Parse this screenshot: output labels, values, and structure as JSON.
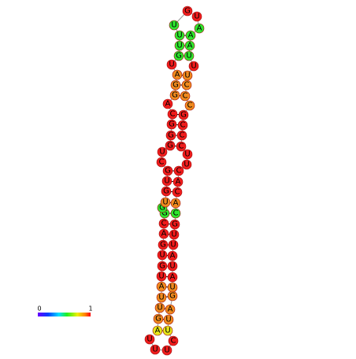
{
  "nodes": [
    {
      "label": "A",
      "color": "#e6e619"
    },
    {
      "label": "G",
      "color": "#f08a1e"
    },
    {
      "label": "U",
      "color": "#f08a1e"
    },
    {
      "label": "U",
      "color": "#f08a1e"
    },
    {
      "label": "A",
      "color": "#f08a1e"
    },
    {
      "label": "U",
      "color": "#f01c1c"
    },
    {
      "label": "G",
      "color": "#f01c1c"
    },
    {
      "label": "U",
      "color": "#f01c1c"
    },
    {
      "label": "G",
      "color": "#f01c1c"
    },
    {
      "label": "A",
      "color": "#f01c1c"
    },
    {
      "label": "C",
      "color": "#f01c1c"
    },
    {
      "label": "G",
      "color": "#2ee62e"
    },
    {
      "label": "G",
      "color": "#2ee62e"
    },
    {
      "label": "U",
      "color": "#f08a1e"
    },
    {
      "label": "G",
      "color": "#f01c1c"
    },
    {
      "label": "U",
      "color": "#f01c1c"
    },
    {
      "label": "G",
      "color": "#f01c1c"
    },
    {
      "label": "C",
      "color": "#f01c1c"
    },
    {
      "label": "U",
      "color": "#f01c1c"
    },
    {
      "label": "G",
      "color": "#f01c1c"
    },
    {
      "label": "G",
      "color": "#f01c1c"
    },
    {
      "label": "G",
      "color": "#f01c1c"
    },
    {
      "label": "C",
      "color": "#f01c1c"
    },
    {
      "label": "A",
      "color": "#f01c1c"
    },
    {
      "label": "G",
      "color": "#f08a1e"
    },
    {
      "label": "G",
      "color": "#f08a1e"
    },
    {
      "label": "A",
      "color": "#f08a1e"
    },
    {
      "label": "U",
      "color": "#f01c1c"
    },
    {
      "label": "G",
      "color": "#2ee62e"
    },
    {
      "label": "U",
      "color": "#2ee62e"
    },
    {
      "label": "U",
      "color": "#2ee62e"
    },
    {
      "label": "U",
      "color": "#2ee62e"
    },
    {
      "label": "G",
      "color": "#f01c1c"
    },
    {
      "label": "U",
      "color": "#f01c1c"
    },
    {
      "label": "A",
      "color": "#2ee62e"
    },
    {
      "label": "A",
      "color": "#2ee62e"
    },
    {
      "label": "A",
      "color": "#2ee62e"
    },
    {
      "label": "U",
      "color": "#2ee62e"
    },
    {
      "label": "U",
      "color": "#f01c1c"
    },
    {
      "label": "U",
      "color": "#f08a1e"
    },
    {
      "label": "C",
      "color": "#f08a1e"
    },
    {
      "label": "C",
      "color": "#f08a1e"
    },
    {
      "label": "C",
      "color": "#f08a1e"
    },
    {
      "label": "G",
      "color": "#f01c1c"
    },
    {
      "label": "C",
      "color": "#f01c1c"
    },
    {
      "label": "C",
      "color": "#f01c1c"
    },
    {
      "label": "C",
      "color": "#f01c1c"
    },
    {
      "label": "U",
      "color": "#f01c1c"
    },
    {
      "label": "U",
      "color": "#f01c1c"
    },
    {
      "label": "C",
      "color": "#f01c1c"
    },
    {
      "label": "A",
      "color": "#f01c1c"
    },
    {
      "label": "C",
      "color": "#f01c1c"
    },
    {
      "label": "A",
      "color": "#f08a1e"
    },
    {
      "label": "C",
      "color": "#2ee62e"
    },
    {
      "label": "G",
      "color": "#f01c1c"
    },
    {
      "label": "U",
      "color": "#f01c1c"
    },
    {
      "label": "U",
      "color": "#f01c1c"
    },
    {
      "label": "A",
      "color": "#f01c1c"
    },
    {
      "label": "U",
      "color": "#f01c1c"
    },
    {
      "label": "A",
      "color": "#f01c1c"
    },
    {
      "label": "U",
      "color": "#f08a1e"
    },
    {
      "label": "G",
      "color": "#f08a1e"
    },
    {
      "label": "A",
      "color": "#f08a1e"
    },
    {
      "label": "U",
      "color": "#f08a1e"
    },
    {
      "label": "U",
      "color": "#e6e619"
    },
    {
      "label": "C",
      "color": "#f01c1c"
    },
    {
      "label": "U",
      "color": "#f01c1c"
    },
    {
      "label": "U",
      "color": "#f01c1c"
    },
    {
      "label": "U",
      "color": "#f01c1c"
    }
  ],
  "legend": {
    "min_label": "0",
    "max_label": "1"
  }
}
